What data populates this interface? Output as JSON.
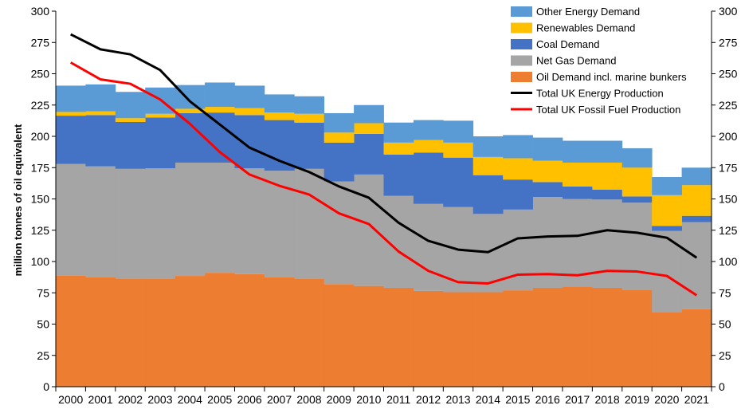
{
  "chart_data": {
    "type": "area",
    "title": "",
    "xlabel": "",
    "ylabel": "million tonnes of oil equivalent",
    "ylim": [
      0,
      300
    ],
    "ytick_step": 25,
    "y_ticks": [
      "0",
      "25",
      "50",
      "75",
      "100",
      "125",
      "150",
      "175",
      "200",
      "225",
      "250",
      "275",
      "300"
    ],
    "categories": [
      "2000",
      "2001",
      "2002",
      "2003",
      "2004",
      "2005",
      "2006",
      "2007",
      "2008",
      "2009",
      "2010",
      "2011",
      "2012",
      "2013",
      "2014",
      "2015",
      "2016",
      "2017",
      "2018",
      "2019",
      "2020",
      "2021"
    ],
    "stacked_series": [
      {
        "name": "Oil Demand incl. marine bunkers",
        "color": "#ED7D31",
        "values": [
          89,
          87.5,
          86.5,
          86.5,
          88.5,
          91,
          90,
          87.5,
          86.5,
          82,
          80.5,
          79,
          76.5,
          75.5,
          75.5,
          77,
          79,
          80,
          79,
          77.5,
          59.5,
          62
        ]
      },
      {
        "name": "Net Gas Demand",
        "color": "#A5A5A5",
        "values": [
          89,
          88.5,
          87.5,
          88,
          90.5,
          88,
          84.5,
          85,
          87.5,
          82,
          89,
          73.5,
          69.5,
          68,
          62.5,
          64.5,
          72.5,
          70,
          70.5,
          69.5,
          65,
          69.5
        ]
      },
      {
        "name": "Coal Demand",
        "color": "#4472C4",
        "values": [
          38.5,
          41,
          37.5,
          40.5,
          39.5,
          40,
          42.5,
          40.5,
          37,
          31,
          32.5,
          33,
          41,
          39.5,
          31,
          24,
          12,
          10,
          8,
          5,
          4,
          5
        ]
      },
      {
        "name": "Renewables Demand",
        "color": "#FFC000",
        "values": [
          3,
          3,
          3,
          3,
          3.5,
          4.5,
          5.5,
          6,
          7,
          8,
          8.5,
          9.5,
          10,
          12,
          14.5,
          17,
          17,
          19,
          21.5,
          23,
          24.5,
          24.5
        ]
      },
      {
        "name": "Other Energy Demand",
        "color": "#5B9BD5",
        "values": [
          21,
          21.5,
          21,
          21,
          19,
          19.5,
          18,
          14.5,
          14,
          15.5,
          14.5,
          16,
          16,
          17.5,
          16.5,
          18.5,
          18.5,
          17.5,
          17.5,
          15.5,
          14.5,
          14
        ]
      }
    ],
    "line_series": [
      {
        "name": "Total UK Energy Production",
        "color": "#000000",
        "values": [
          281.5,
          269.5,
          265.5,
          253,
          228,
          209.5,
          191,
          180.5,
          171.5,
          160,
          151,
          131,
          116.5,
          109.5,
          107.5,
          118.5,
          120,
          120.5,
          125,
          123,
          119,
          103
        ]
      },
      {
        "name": "Total UK Fossil Fuel Production",
        "color": "#FF0000",
        "values": [
          259,
          245.5,
          242,
          229.5,
          210,
          187.5,
          169.5,
          160.5,
          153.5,
          138.5,
          130,
          108,
          92.5,
          83.5,
          82.5,
          89.5,
          90,
          89,
          92.5,
          92,
          88.5,
          73
        ]
      }
    ],
    "legend": {
      "placement": "top-right",
      "items": [
        {
          "label": "Other Energy Demand",
          "kind": "box",
          "color": "#5B9BD5"
        },
        {
          "label": "Renewables Demand",
          "kind": "box",
          "color": "#FFC000"
        },
        {
          "label": "Coal Demand",
          "kind": "box",
          "color": "#4472C4"
        },
        {
          "label": "Net Gas Demand",
          "kind": "box",
          "color": "#A5A5A5"
        },
        {
          "label": "Oil Demand incl. marine bunkers",
          "kind": "box",
          "color": "#ED7D31"
        },
        {
          "label": "Total UK Energy Production",
          "kind": "line",
          "color": "#000000"
        },
        {
          "label": "Total UK Fossil Fuel Production",
          "kind": "line",
          "color": "#FF0000"
        }
      ]
    },
    "grid": false,
    "secondary_y_axis": true
  }
}
